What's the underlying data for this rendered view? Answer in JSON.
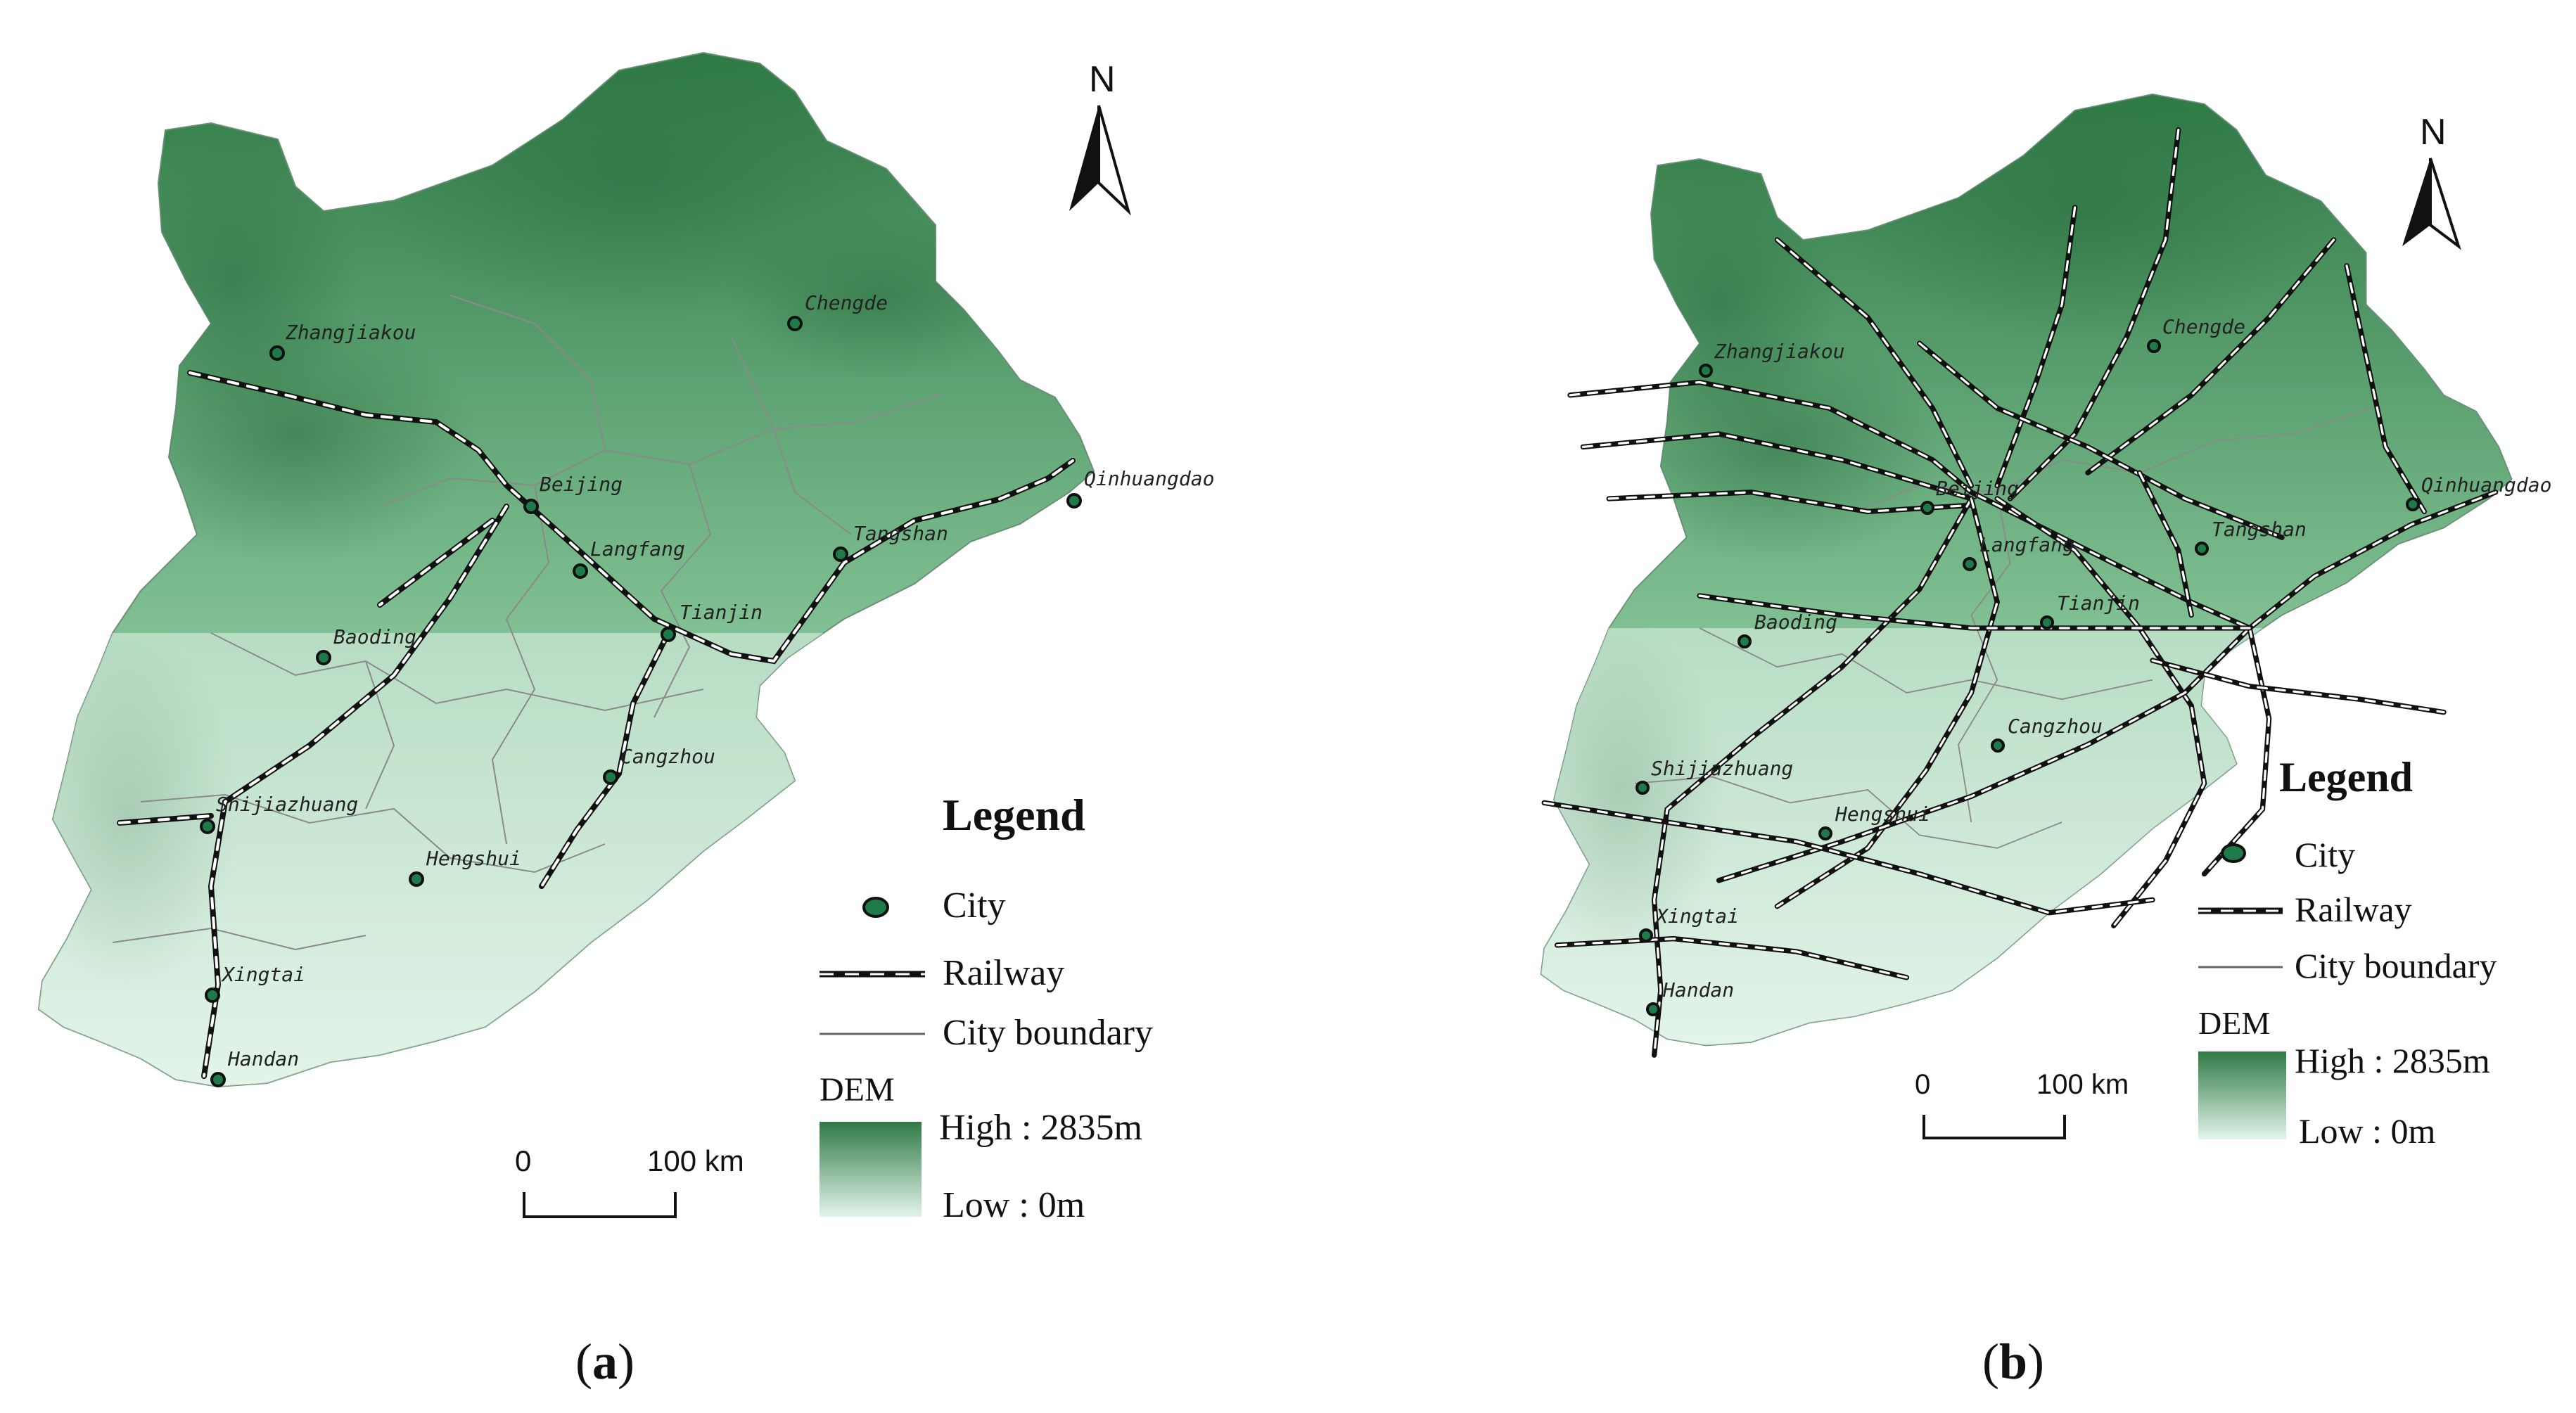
{
  "colors": {
    "dem_high": "#2f7a45",
    "dem_low": "#e3f4ea",
    "city_fill": "#1f7a4a",
    "railway": "#111111",
    "boundary": "#8a8a8a"
  },
  "map_a": {
    "caption_open": "(",
    "caption_letter": "a",
    "caption_close": ")",
    "north": "N",
    "legend": {
      "title": "Legend",
      "city": "City",
      "railway": "Railway",
      "boundary": "City boundary",
      "dem": "DEM",
      "high": "High : 2835m",
      "low": "Low : 0m"
    },
    "scale": {
      "zero": "0",
      "end": "100 km"
    },
    "cities": [
      {
        "id": "zhangjiakou",
        "name": "Zhangjiakou"
      },
      {
        "id": "chengde",
        "name": "Chengde"
      },
      {
        "id": "beijing",
        "name": "Beijing"
      },
      {
        "id": "qinhuangdao",
        "name": "Qinhuangdao"
      },
      {
        "id": "langfang",
        "name": "Langfang"
      },
      {
        "id": "tangshan",
        "name": "Tangshan"
      },
      {
        "id": "tianjin",
        "name": "Tianjin"
      },
      {
        "id": "baoding",
        "name": "Baoding"
      },
      {
        "id": "cangzhou",
        "name": "Cangzhou"
      },
      {
        "id": "shijiazhuang",
        "name": "Shijiazhuang"
      },
      {
        "id": "hengshui",
        "name": "Hengshui"
      },
      {
        "id": "xingtai",
        "name": "Xingtai"
      },
      {
        "id": "handan",
        "name": "Handan"
      }
    ]
  },
  "map_b": {
    "caption_open": "(",
    "caption_letter": "b",
    "caption_close": ")",
    "north": "N",
    "legend": {
      "title": "Legend",
      "city": "City",
      "railway": "Railway",
      "boundary": "City boundary",
      "dem": "DEM",
      "high": "High : 2835m",
      "low": "Low : 0m"
    },
    "scale": {
      "zero": "0",
      "end": "100 km"
    },
    "cities": [
      {
        "id": "zhangjiakou",
        "name": "Zhangjiakou"
      },
      {
        "id": "chengde",
        "name": "Chengde"
      },
      {
        "id": "beijing",
        "name": "Beijing"
      },
      {
        "id": "qinhuangdao",
        "name": "Qinhuangdao"
      },
      {
        "id": "langfang",
        "name": "Langfang"
      },
      {
        "id": "tangshan",
        "name": "Tangshan"
      },
      {
        "id": "tianjin",
        "name": "Tianjin"
      },
      {
        "id": "baoding",
        "name": "Baoding"
      },
      {
        "id": "cangzhou",
        "name": "Cangzhou"
      },
      {
        "id": "shijiazhuang",
        "name": "Shijiazhuang"
      },
      {
        "id": "hengshui",
        "name": "Hengshui"
      },
      {
        "id": "xingtai",
        "name": "Xingtai"
      },
      {
        "id": "handan",
        "name": "Handan"
      }
    ]
  }
}
